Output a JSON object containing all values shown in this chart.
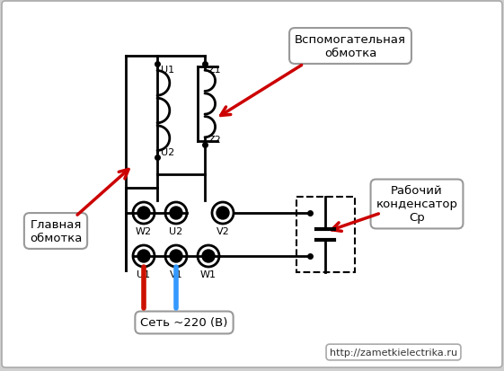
{
  "bg_color": "#d0d0d0",
  "url_text": "http://zametkielectrika.ru",
  "net_text": "Сеть ~220 (В)",
  "label_glavnaya": "Главная\nобмотка",
  "label_vspom": "Вспомогательная\nобмотка",
  "label_kondensator": "Рабочий\nконденсатор\nСр"
}
